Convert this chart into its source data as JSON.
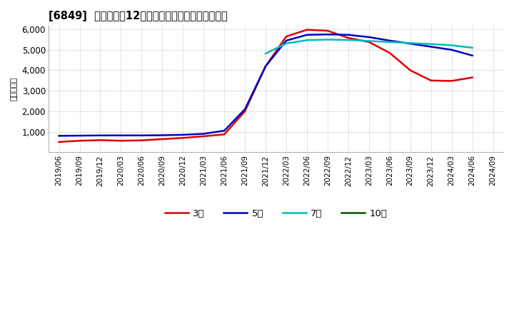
{
  "title": "[6849]  当期純利益12か月移動合計の標準偏差の推移",
  "ylabel": "（百万円）",
  "ylim": [
    0,
    6200
  ],
  "yticks": [
    1000,
    2000,
    3000,
    4000,
    5000,
    6000
  ],
  "x_labels": [
    "2019/06",
    "2019/09",
    "2019/12",
    "2020/03",
    "2020/06",
    "2020/09",
    "2020/12",
    "2021/03",
    "2021/06",
    "2021/09",
    "2021/12",
    "2022/03",
    "2022/06",
    "2022/09",
    "2022/12",
    "2023/03",
    "2023/06",
    "2023/09",
    "2023/12",
    "2024/03",
    "2024/06",
    "2024/09"
  ],
  "series_3": {
    "color": "#dd0000",
    "values": [
      500,
      560,
      590,
      560,
      580,
      640,
      700,
      780,
      870,
      2000,
      4200,
      5650,
      5980,
      5930,
      5580,
      5380,
      4850,
      4000,
      3500,
      3480,
      3650,
      null
    ]
  },
  "series_5": {
    "color": "#0000bb",
    "values": [
      800,
      810,
      820,
      820,
      820,
      830,
      850,
      900,
      1050,
      2100,
      4200,
      5450,
      5730,
      5750,
      5730,
      5620,
      5450,
      5300,
      5150,
      5000,
      4720,
      null
    ]
  },
  "series_7": {
    "color": "#00bbbb",
    "values": [
      null,
      null,
      null,
      null,
      null,
      null,
      null,
      null,
      null,
      null,
      4820,
      5310,
      5470,
      5500,
      5480,
      5430,
      5380,
      5330,
      5280,
      5220,
      5100,
      null
    ]
  },
  "series_10": {
    "color": "#005500",
    "values": [
      null,
      null,
      null,
      null,
      null,
      null,
      null,
      null,
      null,
      null,
      null,
      null,
      null,
      null,
      null,
      null,
      null,
      null,
      null,
      null,
      null,
      null
    ]
  },
  "legend_labels": [
    "3年",
    "5年",
    "7年",
    "10年"
  ],
  "legend_colors": [
    "#dd0000",
    "#0000bb",
    "#00bbbb",
    "#005500"
  ],
  "background_color": "#ffffff",
  "grid_color": "#aaaaaa"
}
